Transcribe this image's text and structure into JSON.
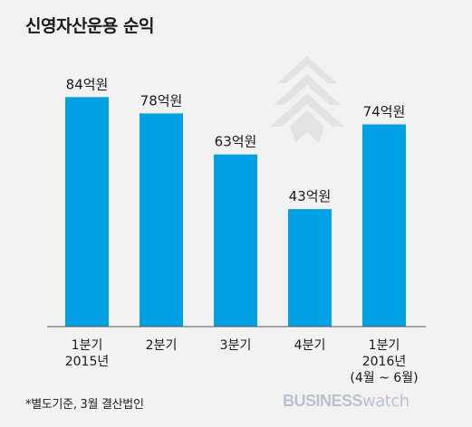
{
  "title": "신영자산운용 순익",
  "footnote": "*별도기준, 3월 결산법인",
  "brand": {
    "part1": "BUSINESS",
    "part2": "watch"
  },
  "colors": {
    "bar": "#00a0e4",
    "baseline": "#555555",
    "watermark": "#e3e3e3"
  },
  "icons": {
    "watermark": "tree-logo-icon"
  },
  "chart_data": {
    "type": "bar",
    "title": "신영자산운용 순익",
    "categories": [
      "1분기\n2015년",
      "2분기",
      "3분기",
      "4분기",
      "1분기\n2016년\n(4월 ~ 6월)"
    ],
    "values": [
      84,
      78,
      63,
      43,
      74
    ],
    "data_labels": [
      "84억원",
      "78억원",
      "63억원",
      "43억원",
      "74억원"
    ],
    "unit": "억원",
    "ylim": [
      0,
      100
    ],
    "grid": false,
    "legend": "none"
  }
}
